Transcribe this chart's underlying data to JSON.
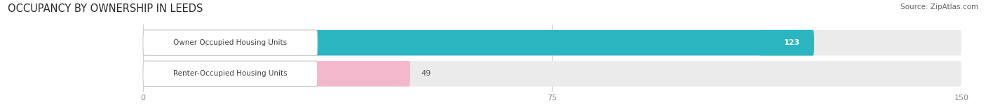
{
  "title": "OCCUPANCY BY OWNERSHIP IN LEEDS",
  "source": "Source: ZipAtlas.com",
  "categories": [
    "Owner Occupied Housing Units",
    "Renter-Occupied Housing Units"
  ],
  "values": [
    123,
    49
  ],
  "bar_colors": [
    "#2ab5c0",
    "#f4b8cc"
  ],
  "value_label_colors": [
    "#ffffff",
    "#555555"
  ],
  "bar_bg_color": "#ebebeb",
  "label_bg_color": "#ffffff",
  "label_border_color": "#cccccc",
  "xlim": [
    0,
    150
  ],
  "xticks": [
    0,
    75,
    150
  ],
  "title_fontsize": 10.5,
  "source_fontsize": 7.5,
  "label_fontsize": 7.5,
  "value_fontsize": 8,
  "background_color": "#ffffff",
  "tick_color": "#888888",
  "grid_color": "#d0d0d0"
}
